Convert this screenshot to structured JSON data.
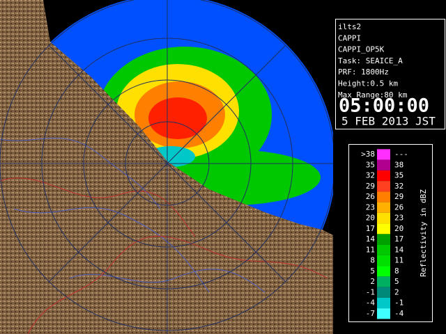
{
  "info": {
    "lines": [
      "ilts2",
      "CAPPI",
      "CAPPI_OP5K",
      "Task: SEAICE_A",
      "PRF: 1800Hz",
      "Height:0.5 km",
      "Max Range:80 km"
    ],
    "time": "05:00:00",
    "date": "5 FEB 2013 JST"
  },
  "legend": {
    "title": "Reflectivity in dBZ",
    "rows": [
      {
        "low": ">38",
        "high": "---",
        "color": "#ff30ff"
      },
      {
        "low": "35",
        "high": "38",
        "color": "#b00090"
      },
      {
        "low": "32",
        "high": "35",
        "color": "#ff0000"
      },
      {
        "low": "29",
        "high": "32",
        "color": "#ff4020"
      },
      {
        "low": "26",
        "high": "29",
        "color": "#ff8000"
      },
      {
        "low": "23",
        "high": "26",
        "color": "#ffb000"
      },
      {
        "low": "20",
        "high": "23",
        "color": "#ffe000"
      },
      {
        "low": "17",
        "high": "20",
        "color": "#ffff00"
      },
      {
        "low": "14",
        "high": "17",
        "color": "#00a000"
      },
      {
        "low": "11",
        "high": "14",
        "color": "#00c800"
      },
      {
        "low": "8",
        "high": "11",
        "color": "#00e000"
      },
      {
        "low": "5",
        "high": "8",
        "color": "#00ff00"
      },
      {
        "low": "2",
        "high": "5",
        "color": "#00b060"
      },
      {
        "low": "-1",
        "high": "2",
        "color": "#008878"
      },
      {
        "low": "-4",
        "high": "-1",
        "color": "#00c8c8"
      },
      {
        "low": "-7",
        "high": "-4",
        "color": "#40ffff"
      }
    ]
  }
}
